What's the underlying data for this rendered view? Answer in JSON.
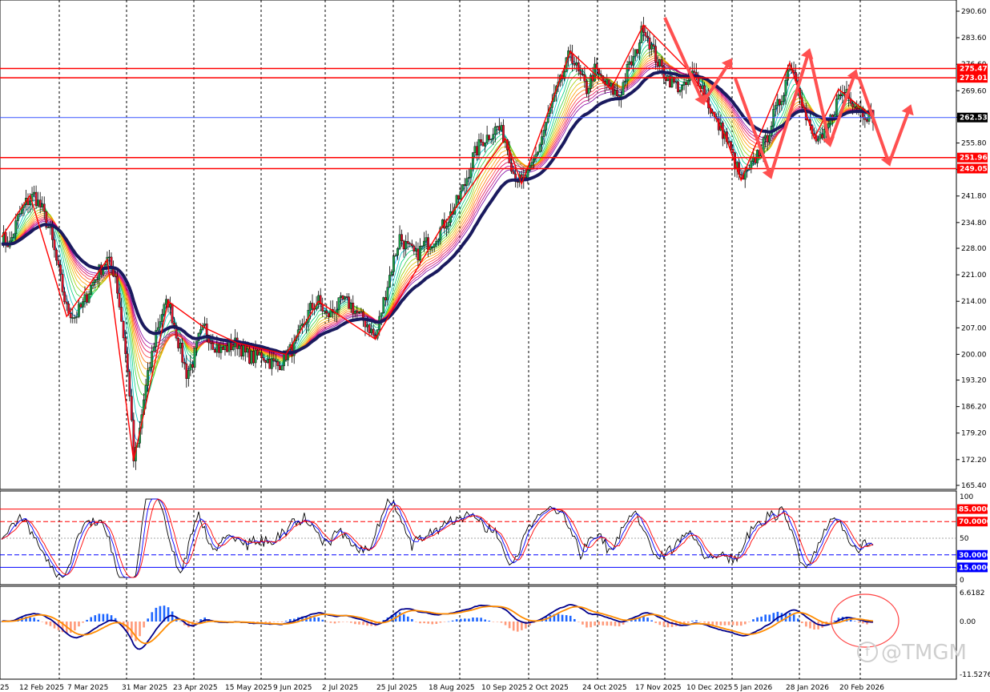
{
  "chart_data": [
    {
      "type": "candlestick",
      "panel": "main",
      "x_dates": [
        "12 Feb 2025",
        "7 Mar 2025",
        "31 Mar 2025",
        "23 Apr 2025",
        "15 May 2025",
        "9 Jun 2025",
        "2 Jul 2025",
        "25 Jul 2025",
        "18 Aug 2025",
        "10 Sep 2025",
        "2 Oct 2025",
        "24 Oct 2025",
        "17 Nov 2025",
        "10 Dec 2025",
        "5 Jan 2026",
        "28 Jan 2026",
        "20 Feb 2026"
      ],
      "x_first_label_partial": "25",
      "ylim": [
        165.4,
        290.6
      ],
      "y_ticks": [
        "290.60",
        "283.60",
        "276.60",
        "269.60",
        "262.60",
        "255.80",
        "248.80",
        "241.80",
        "234.80",
        "228.00",
        "221.00",
        "214.00",
        "207.00",
        "200.00",
        "193.20",
        "186.20",
        "179.20",
        "172.20",
        "165.40"
      ],
      "current_price": "262.53",
      "horizontal_levels": [
        {
          "value": "275.47",
          "color": "#ff0000"
        },
        {
          "value": "273.01",
          "color": "#ff0000"
        },
        {
          "value": "251.96",
          "color": "#ff0000"
        },
        {
          "value": "249.05",
          "color": "#ff0000"
        }
      ],
      "price_path": [
        [
          0,
          231
        ],
        [
          4,
          229
        ],
        [
          8,
          236
        ],
        [
          12,
          240
        ],
        [
          16,
          242
        ],
        [
          20,
          238
        ],
        [
          24,
          232
        ],
        [
          28,
          222
        ],
        [
          32,
          212
        ],
        [
          36,
          210
        ],
        [
          40,
          213
        ],
        [
          44,
          218
        ],
        [
          48,
          222
        ],
        [
          52,
          225
        ],
        [
          56,
          221
        ],
        [
          60,
          205
        ],
        [
          63,
          190
        ],
        [
          65,
          172
        ],
        [
          67,
          176
        ],
        [
          70,
          188
        ],
        [
          73,
          197
        ],
        [
          76,
          206
        ],
        [
          79,
          211
        ],
        [
          82,
          214
        ],
        [
          85,
          208
        ],
        [
          88,
          201
        ],
        [
          91,
          195
        ],
        [
          94,
          198
        ],
        [
          97,
          204
        ],
        [
          100,
          207
        ],
        [
          104,
          203
        ],
        [
          108,
          201
        ],
        [
          112,
          202
        ],
        [
          116,
          203
        ],
        [
          120,
          200
        ],
        [
          124,
          199
        ],
        [
          128,
          200
        ],
        [
          132,
          198
        ],
        [
          136,
          197
        ],
        [
          140,
          200
        ],
        [
          144,
          202
        ],
        [
          148,
          207
        ],
        [
          152,
          212
        ],
        [
          156,
          214
        ],
        [
          160,
          210
        ],
        [
          164,
          212
        ],
        [
          168,
          214
        ],
        [
          172,
          213
        ],
        [
          176,
          210
        ],
        [
          180,
          208
        ],
        [
          184,
          204
        ],
        [
          188,
          214
        ],
        [
          192,
          223
        ],
        [
          196,
          231
        ],
        [
          200,
          228
        ],
        [
          204,
          226
        ],
        [
          208,
          229
        ],
        [
          212,
          230
        ],
        [
          216,
          233
        ],
        [
          220,
          236
        ],
        [
          224,
          240
        ],
        [
          228,
          245
        ],
        [
          232,
          252
        ],
        [
          236,
          256
        ],
        [
          240,
          258
        ],
        [
          244,
          260
        ],
        [
          248,
          257
        ],
        [
          252,
          248
        ],
        [
          256,
          245
        ],
        [
          260,
          248
        ],
        [
          264,
          254
        ],
        [
          268,
          261
        ],
        [
          272,
          268
        ],
        [
          276,
          273
        ],
        [
          280,
          280
        ],
        [
          284,
          274
        ],
        [
          288,
          270
        ],
        [
          292,
          275
        ],
        [
          296,
          272
        ],
        [
          300,
          270
        ],
        [
          304,
          268
        ],
        [
          308,
          275
        ],
        [
          312,
          279
        ],
        [
          316,
          287
        ],
        [
          320,
          281
        ],
        [
          324,
          276
        ],
        [
          328,
          273
        ],
        [
          332,
          271
        ],
        [
          336,
          270
        ],
        [
          340,
          274
        ],
        [
          344,
          272
        ],
        [
          348,
          266
        ],
        [
          352,
          261
        ],
        [
          356,
          258
        ],
        [
          360,
          252
        ],
        [
          364,
          246
        ],
        [
          368,
          248
        ],
        [
          372,
          253
        ],
        [
          376,
          256
        ],
        [
          380,
          263
        ],
        [
          384,
          268
        ],
        [
          388,
          277
        ],
        [
          392,
          272
        ],
        [
          396,
          262
        ],
        [
          400,
          257
        ],
        [
          404,
          256
        ],
        [
          408,
          262
        ],
        [
          412,
          268
        ],
        [
          416,
          270
        ],
        [
          420,
          266
        ],
        [
          424,
          264
        ],
        [
          428,
          263
        ]
      ],
      "series": [
        {
          "name": "",
          "color": "#1a1a5e",
          "role": "moving-average"
        },
        {
          "name": "",
          "color": "#ff0000",
          "role": "zigzag"
        }
      ]
    },
    {
      "type": "line",
      "panel": "oscillator",
      "ylim": [
        0,
        100
      ],
      "y_ticks": [
        "100",
        "85.0000",
        "70.0000",
        "50",
        "30.0000",
        "15.0000",
        "0"
      ],
      "levels": [
        {
          "value": "85.0000",
          "color": "#ff0000"
        },
        {
          "value": "70.0000",
          "color": "#ff0000"
        },
        {
          "value": "30.0000",
          "color": "#0000ff"
        },
        {
          "value": "15.0000",
          "color": "#0000ff"
        }
      ],
      "series": [
        {
          "name": "",
          "color": "#000000"
        },
        {
          "name": "",
          "color": "#0000ff"
        },
        {
          "name": "",
          "color": "#ff0000"
        }
      ]
    },
    {
      "type": "bar",
      "panel": "macd",
      "ylim": [
        -11.5276,
        6.6182
      ],
      "y_ticks": [
        "6.6182",
        "0.00",
        "-11.5276"
      ],
      "series": [
        {
          "name": "",
          "color": "#1e66ff",
          "role": "histogram-positive"
        },
        {
          "name": "",
          "color": "#ff9a7a",
          "role": "histogram-negative"
        },
        {
          "name": "",
          "color": "#00008b",
          "role": "fast-line"
        },
        {
          "name": "",
          "color": "#ff8c00",
          "role": "signal-line"
        }
      ]
    }
  ],
  "watermark": {
    "text": "@TMGM",
    "icon": "facebook-icon"
  }
}
